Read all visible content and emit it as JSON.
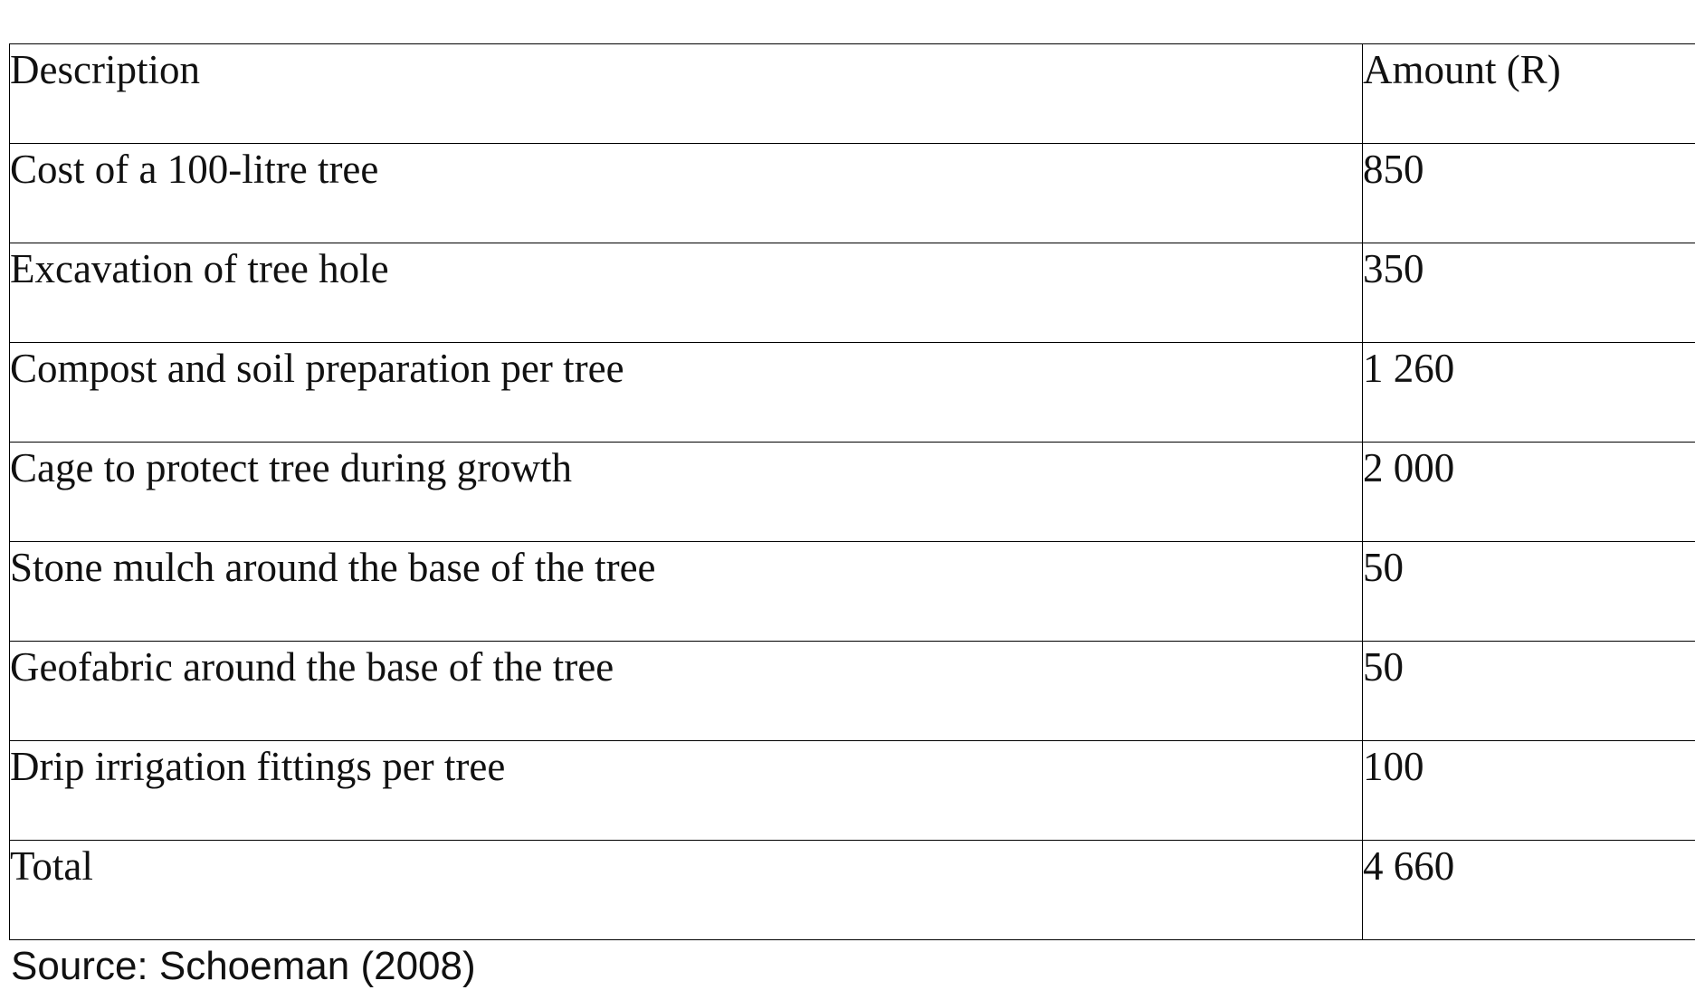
{
  "table": {
    "header": [
      "Description",
      "Amount (R)"
    ],
    "rows": [
      [
        "Cost of a 100-litre tree",
        "850"
      ],
      [
        "Excavation of tree hole",
        "350"
      ],
      [
        "Compost and soil preparation per tree",
        "1 260"
      ],
      [
        "Cage to protect tree during growth",
        "2 000"
      ],
      [
        "Stone mulch around the base of the tree",
        "50"
      ],
      [
        "Geofabric around the base of the tree",
        "50"
      ],
      [
        "Drip irrigation fittings per tree",
        "100"
      ],
      [
        "Total",
        "4 660"
      ]
    ]
  },
  "source": "Source: Schoeman (2008)"
}
